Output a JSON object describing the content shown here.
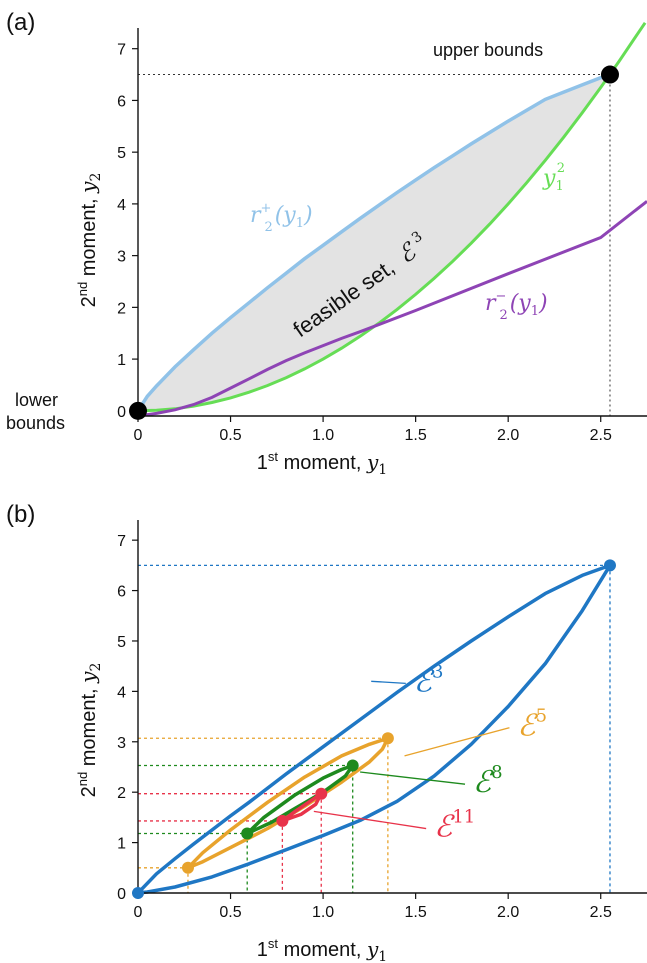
{
  "chart_data": [
    {
      "type": "line",
      "panel_label": "(a)",
      "xlabel": "1st moment, y1",
      "ylabel": "2nd moment, y2",
      "xlim": [
        0,
        2.75
      ],
      "ylim": [
        -0.1,
        7.4
      ],
      "x_ticks": [
        "0",
        "0.5",
        "1.0",
        "1.5",
        "2.0",
        "2.5"
      ],
      "y_ticks": [
        "0",
        "1",
        "2",
        "3",
        "4",
        "5",
        "6",
        "7"
      ],
      "grid": false,
      "colors": {
        "upper": "#90c2e8",
        "square": "#66dd55",
        "lower": "#8e44b5",
        "fill": "#e3e3e3",
        "guide": "#333333"
      },
      "series": [
        {
          "name": "r2+(y1)",
          "color": "#90c2e8",
          "points": [
            [
              0,
              0
            ],
            [
              0.05,
              0.28
            ],
            [
              0.1,
              0.48
            ],
            [
              0.2,
              0.85
            ],
            [
              0.3,
              1.18
            ],
            [
              0.4,
              1.5
            ],
            [
              0.5,
              1.8
            ],
            [
              0.6,
              2.09
            ],
            [
              0.7,
              2.38
            ],
            [
              0.8,
              2.66
            ],
            [
              0.9,
              2.94
            ],
            [
              1.0,
              3.2
            ],
            [
              1.1,
              3.46
            ],
            [
              1.2,
              3.72
            ],
            [
              1.3,
              3.97
            ],
            [
              1.4,
              4.22
            ],
            [
              1.5,
              4.46
            ],
            [
              1.6,
              4.7
            ],
            [
              1.7,
              4.93
            ],
            [
              1.8,
              5.16
            ],
            [
              1.9,
              5.38
            ],
            [
              2.0,
              5.6
            ],
            [
              2.1,
              5.81
            ],
            [
              2.2,
              6.02
            ],
            [
              2.3,
              6.16
            ],
            [
              2.4,
              6.3
            ],
            [
              2.5,
              6.44
            ],
            [
              2.55,
              6.5
            ]
          ]
        },
        {
          "name": "y1^2",
          "color": "#66dd55",
          "points": [
            [
              0,
              0
            ],
            [
              0.1,
              0.01
            ],
            [
              0.2,
              0.04
            ],
            [
              0.3,
              0.09
            ],
            [
              0.4,
              0.16
            ],
            [
              0.5,
              0.25
            ],
            [
              0.6,
              0.36
            ],
            [
              0.7,
              0.49
            ],
            [
              0.8,
              0.64
            ],
            [
              0.9,
              0.81
            ],
            [
              1.0,
              1.0
            ],
            [
              1.1,
              1.21
            ],
            [
              1.2,
              1.44
            ],
            [
              1.3,
              1.69
            ],
            [
              1.4,
              1.96
            ],
            [
              1.5,
              2.25
            ],
            [
              1.6,
              2.56
            ],
            [
              1.7,
              2.89
            ],
            [
              1.8,
              3.24
            ],
            [
              1.9,
              3.61
            ],
            [
              2.0,
              4.0
            ],
            [
              2.1,
              4.41
            ],
            [
              2.2,
              4.84
            ],
            [
              2.3,
              5.29
            ],
            [
              2.4,
              5.76
            ],
            [
              2.5,
              6.25
            ],
            [
              2.6,
              6.76
            ],
            [
              2.7,
              7.29
            ],
            [
              2.74,
              7.5
            ]
          ]
        },
        {
          "name": "r2-(y1)",
          "color": "#8e44b5",
          "points": [
            [
              0,
              -0.1
            ],
            [
              0.1,
              -0.05
            ],
            [
              0.2,
              0.02
            ],
            [
              0.3,
              0.12
            ],
            [
              0.4,
              0.26
            ],
            [
              0.5,
              0.44
            ],
            [
              0.6,
              0.62
            ],
            [
              0.7,
              0.8
            ],
            [
              0.8,
              0.97
            ],
            [
              0.9,
              1.12
            ],
            [
              1.0,
              1.26
            ],
            [
              1.1,
              1.4
            ],
            [
              1.2,
              1.53
            ],
            [
              1.5,
              1.94
            ],
            [
              2.0,
              2.65
            ],
            [
              2.5,
              3.35
            ],
            [
              2.75,
              4.05
            ]
          ]
        }
      ],
      "points": [
        {
          "name": "lower bounds",
          "x": 0,
          "y": 0
        },
        {
          "name": "upper bounds",
          "x": 2.55,
          "y": 6.5
        }
      ],
      "annotations": {
        "upper_bounds": "upper bounds",
        "lower_bounds_1": "lower",
        "lower_bounds_2": "bounds",
        "feasible": "feasible set,",
        "feasible_sym": "ℰ",
        "feasible_sup": "3",
        "r_plus": "r",
        "r_plus_sup": "+",
        "r_plus_sub": "2",
        "r_plus_arg": "(y",
        "r_plus_arg_sub": "1",
        "r_plus_close": ")",
        "r_minus": "r",
        "r_minus_sup": "−",
        "r_minus_sub": "2",
        "r_minus_arg": "(y",
        "r_minus_arg_sub": "1",
        "r_minus_close": ")",
        "square": "y",
        "square_sub": "1",
        "square_sup": "2"
      },
      "axis_text": {
        "x_prefix": "1",
        "x_sup": "st",
        "x_mid": " moment, ",
        "x_var": "y",
        "x_var_sub": "1",
        "y_prefix": "2",
        "y_sup": "nd",
        "y_mid": " moment, ",
        "y_var": "y",
        "y_var_sub": "2"
      }
    },
    {
      "type": "line",
      "panel_label": "(b)",
      "xlabel": "1st moment, y1",
      "ylabel": "2nd moment, y2",
      "xlim": [
        0,
        2.75
      ],
      "ylim": [
        0,
        7.4
      ],
      "x_ticks": [
        "0",
        "0.5",
        "1.0",
        "1.5",
        "2.0",
        "2.5"
      ],
      "y_ticks": [
        "0",
        "1",
        "2",
        "3",
        "4",
        "5",
        "6",
        "7"
      ],
      "grid": false,
      "series": [
        {
          "name": "ℰ3",
          "label": "3",
          "color": "#1f77c4",
          "closed": true,
          "label_x": 1.49,
          "label_y": 4.0,
          "anchor_x": 1.26,
          "anchor_y": 4.2,
          "points": [
            [
              0,
              0
            ],
            [
              0.1,
              0.38
            ],
            [
              0.2,
              0.68
            ],
            [
              0.3,
              0.97
            ],
            [
              0.4,
              1.25
            ],
            [
              0.5,
              1.53
            ],
            [
              0.6,
              1.8
            ],
            [
              0.8,
              2.36
            ],
            [
              1.0,
              2.9
            ],
            [
              1.2,
              3.44
            ],
            [
              1.4,
              3.98
            ],
            [
              1.6,
              4.5
            ],
            [
              1.8,
              5.0
            ],
            [
              2.0,
              5.48
            ],
            [
              2.2,
              5.94
            ],
            [
              2.4,
              6.3
            ],
            [
              2.55,
              6.5
            ],
            [
              2.4,
              5.6
            ],
            [
              2.2,
              4.55
            ],
            [
              2.0,
              3.7
            ],
            [
              1.8,
              2.95
            ],
            [
              1.6,
              2.32
            ],
            [
              1.4,
              1.82
            ],
            [
              1.2,
              1.44
            ],
            [
              1.0,
              1.14
            ],
            [
              0.8,
              0.86
            ],
            [
              0.6,
              0.58
            ],
            [
              0.4,
              0.32
            ],
            [
              0.2,
              0.12
            ],
            [
              0.05,
              0.02
            ]
          ]
        },
        {
          "name": "ℰ5",
          "label": "5",
          "color": "#e8a32c",
          "closed": true,
          "label_x": 2.05,
          "label_y": 3.12,
          "anchor_x": 1.44,
          "anchor_y": 2.72,
          "points": [
            [
              0.27,
              0.5
            ],
            [
              0.35,
              0.8
            ],
            [
              0.5,
              1.25
            ],
            [
              0.7,
              1.8
            ],
            [
              0.9,
              2.3
            ],
            [
              1.1,
              2.72
            ],
            [
              1.25,
              2.95
            ],
            [
              1.35,
              3.07
            ],
            [
              1.32,
              2.85
            ],
            [
              1.25,
              2.6
            ],
            [
              1.1,
              2.2
            ],
            [
              0.9,
              1.72
            ],
            [
              0.7,
              1.28
            ],
            [
              0.5,
              0.9
            ],
            [
              0.35,
              0.62
            ]
          ]
        },
        {
          "name": "ℰ8",
          "label": "8",
          "color": "#1e8a1e",
          "closed": true,
          "label_x": 1.81,
          "label_y": 2.0,
          "anchor_x": 1.2,
          "anchor_y": 2.4,
          "points": [
            [
              0.59,
              1.18
            ],
            [
              0.68,
              1.5
            ],
            [
              0.85,
              1.95
            ],
            [
              1.0,
              2.28
            ],
            [
              1.1,
              2.45
            ],
            [
              1.16,
              2.53
            ],
            [
              1.12,
              2.32
            ],
            [
              1.0,
              2.0
            ],
            [
              0.85,
              1.68
            ],
            [
              0.72,
              1.4
            ]
          ]
        },
        {
          "name": "ℰ11",
          "label": "11",
          "color": "#e8334a",
          "closed": true,
          "label_x": 1.6,
          "label_y": 1.12,
          "anchor_x": 0.95,
          "anchor_y": 1.62,
          "points": [
            [
              0.78,
              1.43
            ],
            [
              0.85,
              1.62
            ],
            [
              0.93,
              1.82
            ],
            [
              0.99,
              1.97
            ],
            [
              0.96,
              1.76
            ],
            [
              0.88,
              1.56
            ]
          ]
        }
      ],
      "points": [
        {
          "x": 0,
          "y": 0,
          "color": "#1f77c4"
        },
        {
          "x": 2.55,
          "y": 6.5,
          "color": "#1f77c4"
        },
        {
          "x": 0.27,
          "y": 0.5,
          "color": "#e8a32c"
        },
        {
          "x": 1.35,
          "y": 3.07,
          "color": "#e8a32c"
        },
        {
          "x": 0.59,
          "y": 1.18,
          "color": "#1e8a1e"
        },
        {
          "x": 1.16,
          "y": 2.53,
          "color": "#1e8a1e"
        },
        {
          "x": 0.78,
          "y": 1.43,
          "color": "#e8334a"
        },
        {
          "x": 0.99,
          "y": 1.97,
          "color": "#e8334a"
        }
      ],
      "label_symbol": "ℰ",
      "axis_text": {
        "x_prefix": "1",
        "x_sup": "st",
        "x_mid": " moment, ",
        "x_var": "y",
        "x_var_sub": "1",
        "y_prefix": "2",
        "y_sup": "nd",
        "y_mid": " moment, ",
        "y_var": "y",
        "y_var_sub": "2"
      }
    }
  ]
}
